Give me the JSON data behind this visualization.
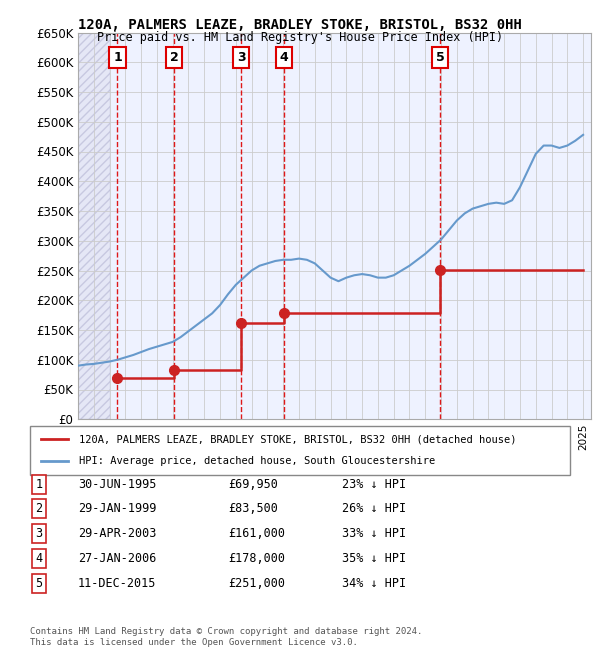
{
  "title1": "120A, PALMERS LEAZE, BRADLEY STOKE, BRISTOL, BS32 0HH",
  "title2": "Price paid vs. HM Land Registry's House Price Index (HPI)",
  "ylabel_ticks": [
    "£0",
    "£50K",
    "£100K",
    "£150K",
    "£200K",
    "£250K",
    "£300K",
    "£350K",
    "£400K",
    "£450K",
    "£500K",
    "£550K",
    "£600K",
    "£650K"
  ],
  "ytick_values": [
    0,
    50000,
    100000,
    150000,
    200000,
    250000,
    300000,
    350000,
    400000,
    450000,
    500000,
    550000,
    600000,
    650000
  ],
  "xlim_start": 1993.0,
  "xlim_end": 2025.5,
  "ylim_min": 0,
  "ylim_max": 650000,
  "hpi_color": "#6699cc",
  "price_color": "#cc2222",
  "sold_dates_x": [
    1995.5,
    1999.08,
    2003.33,
    2006.07,
    2015.95
  ],
  "sold_prices_y": [
    69950,
    83500,
    161000,
    178000,
    251000
  ],
  "sold_labels": [
    "1",
    "2",
    "3",
    "4",
    "5"
  ],
  "vline_color": "#dd0000",
  "legend_line1": "120A, PALMERS LEAZE, BRADLEY STOKE, BRISTOL, BS32 0HH (detached house)",
  "legend_line2": "HPI: Average price, detached house, South Gloucestershire",
  "table_data": [
    [
      "1",
      "30-JUN-1995",
      "£69,950",
      "23% ↓ HPI"
    ],
    [
      "2",
      "29-JAN-1999",
      "£83,500",
      "26% ↓ HPI"
    ],
    [
      "3",
      "29-APR-2003",
      "£161,000",
      "33% ↓ HPI"
    ],
    [
      "4",
      "27-JAN-2006",
      "£178,000",
      "35% ↓ HPI"
    ],
    [
      "5",
      "11-DEC-2015",
      "£251,000",
      "34% ↓ HPI"
    ]
  ],
  "footer": "Contains HM Land Registry data © Crown copyright and database right 2024.\nThis data is licensed under the Open Government Licence v3.0.",
  "hpi_x": [
    1993,
    1993.5,
    1994,
    1994.5,
    1995,
    1995.5,
    1996,
    1996.5,
    1997,
    1997.5,
    1998,
    1998.5,
    1999,
    1999.5,
    2000,
    2000.5,
    2001,
    2001.5,
    2002,
    2002.5,
    2003,
    2003.5,
    2004,
    2004.5,
    2005,
    2005.5,
    2006,
    2006.5,
    2007,
    2007.5,
    2008,
    2008.5,
    2009,
    2009.5,
    2010,
    2010.5,
    2011,
    2011.5,
    2012,
    2012.5,
    2013,
    2013.5,
    2014,
    2014.5,
    2015,
    2015.5,
    2016,
    2016.5,
    2017,
    2017.5,
    2018,
    2018.5,
    2019,
    2019.5,
    2020,
    2020.5,
    2021,
    2021.5,
    2022,
    2022.5,
    2023,
    2023.5,
    2024,
    2024.5,
    2025
  ],
  "hpi_y": [
    90000,
    92000,
    93000,
    95000,
    97000,
    100000,
    104000,
    108000,
    113000,
    118000,
    122000,
    126000,
    130000,
    138000,
    148000,
    158000,
    168000,
    178000,
    192000,
    210000,
    226000,
    238000,
    250000,
    258000,
    262000,
    266000,
    268000,
    268000,
    270000,
    268000,
    262000,
    250000,
    238000,
    232000,
    238000,
    242000,
    244000,
    242000,
    238000,
    238000,
    242000,
    250000,
    258000,
    268000,
    278000,
    290000,
    302000,
    318000,
    334000,
    346000,
    354000,
    358000,
    362000,
    364000,
    362000,
    368000,
    390000,
    418000,
    446000,
    460000,
    460000,
    456000,
    460000,
    468000,
    478000
  ],
  "price_line_x": [
    1995.5,
    1999.08,
    1999.08,
    2003.33,
    2003.33,
    2006.07,
    2006.07,
    2015.95,
    2015.95,
    2025
  ],
  "price_line_y": [
    69950,
    69950,
    83500,
    83500,
    161000,
    161000,
    178000,
    178000,
    251000,
    251000
  ],
  "bg_color": "#eef2ff",
  "plot_bg": "#ffffff"
}
